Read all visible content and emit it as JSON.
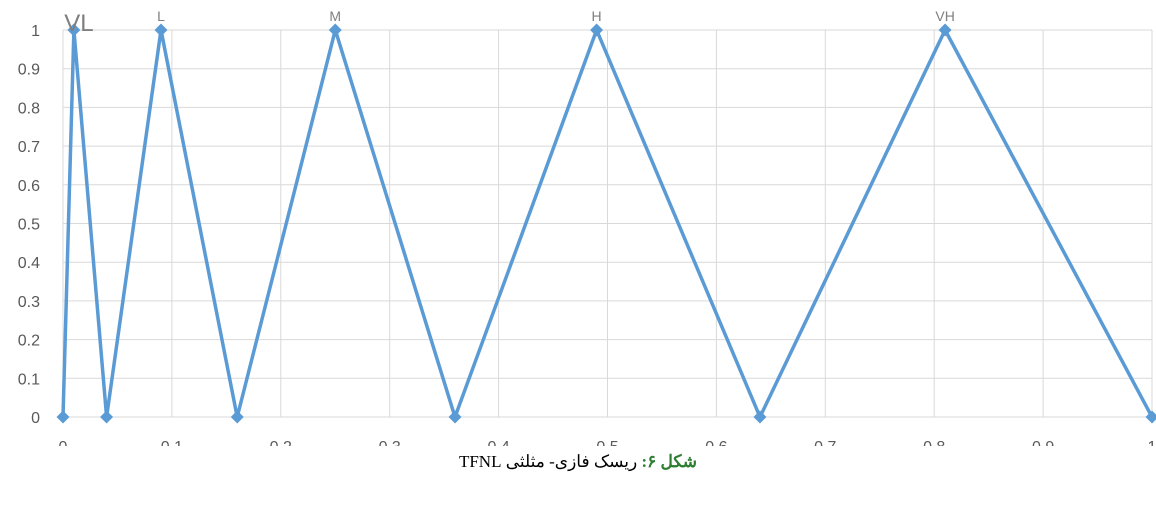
{
  "chart_data": {
    "type": "line",
    "xlim": [
      0,
      1
    ],
    "ylim": [
      0,
      1
    ],
    "x_ticks": [
      "0",
      "0.1",
      "0.2",
      "0.3",
      "0.4",
      "0.5",
      "0.6",
      "0.7",
      "0.8",
      "0.9",
      "1"
    ],
    "y_ticks": [
      "0",
      "0.1",
      "0.2",
      "0.3",
      "0.4",
      "0.5",
      "0.6",
      "0.7",
      "0.8",
      "0.9",
      "1"
    ],
    "grid": true,
    "line_color": "#5b9bd5",
    "points": [
      {
        "x": 0,
        "y": 0
      },
      {
        "x": 0.01,
        "y": 1
      },
      {
        "x": 0.04,
        "y": 0
      },
      {
        "x": 0.09,
        "y": 1
      },
      {
        "x": 0.16,
        "y": 0
      },
      {
        "x": 0.25,
        "y": 1
      },
      {
        "x": 0.36,
        "y": 0
      },
      {
        "x": 0.49,
        "y": 1
      },
      {
        "x": 0.64,
        "y": 0
      },
      {
        "x": 0.81,
        "y": 1
      },
      {
        "x": 1,
        "y": 0
      }
    ],
    "peak_labels": [
      {
        "text": "VL",
        "x": 0.01
      },
      {
        "text": "L",
        "x": 0.09
      },
      {
        "text": "M",
        "x": 0.25
      },
      {
        "text": "H",
        "x": 0.49
      },
      {
        "text": "VH",
        "x": 0.81
      }
    ]
  },
  "caption": {
    "lead": "شکل ۶:",
    "text": "ریسک فازی- مثلثی TFNL"
  }
}
